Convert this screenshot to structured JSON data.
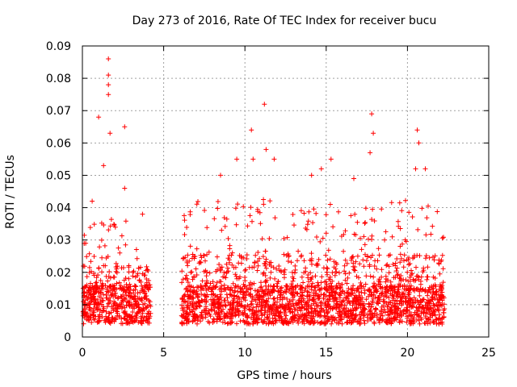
{
  "chart_data": {
    "type": "scatter",
    "title": "Day 273 of 2016, Rate Of TEC Index for receiver bucu",
    "xlabel": "GPS time / hours",
    "ylabel": "ROTI / TECUs",
    "xlim": [
      0,
      25
    ],
    "ylim": [
      0,
      0.09
    ],
    "xticks": [
      0,
      5,
      10,
      15,
      20,
      25
    ],
    "xtick_labels": [
      "0",
      "5",
      "10",
      "15",
      "20",
      "25"
    ],
    "yticks": [
      0,
      0.01,
      0.02,
      0.03,
      0.04,
      0.05,
      0.06,
      0.07,
      0.08,
      0.09
    ],
    "ytick_labels": [
      "0",
      "0.01",
      "0.02",
      "0.03",
      "0.04",
      "0.05",
      "0.06",
      "0.07",
      "0.08",
      "0.09"
    ],
    "grid": true,
    "marker": "+",
    "marker_color": "#ff0000",
    "data_gap_hours": [
      4.2,
      6.1
    ],
    "series": [
      {
        "name": "ROTI",
        "segments": [
          {
            "x_range": [
              0.0,
              4.2
            ],
            "typical_range": [
              0.004,
              0.03
            ]
          },
          {
            "x_range": [
              6.1,
              22.3
            ],
            "typical_range": [
              0.004,
              0.035
            ]
          }
        ],
        "peaks": [
          {
            "x": 0.6,
            "y": 0.042
          },
          {
            "x": 1.0,
            "y": 0.068
          },
          {
            "x": 1.3,
            "y": 0.053
          },
          {
            "x": 1.6,
            "y": 0.086
          },
          {
            "x": 1.6,
            "y": 0.081
          },
          {
            "x": 1.6,
            "y": 0.078
          },
          {
            "x": 1.6,
            "y": 0.075
          },
          {
            "x": 1.7,
            "y": 0.063
          },
          {
            "x": 2.6,
            "y": 0.065
          },
          {
            "x": 2.6,
            "y": 0.046
          },
          {
            "x": 3.7,
            "y": 0.038
          },
          {
            "x": 8.5,
            "y": 0.05
          },
          {
            "x": 9.5,
            "y": 0.055
          },
          {
            "x": 10.4,
            "y": 0.064
          },
          {
            "x": 10.5,
            "y": 0.055
          },
          {
            "x": 11.2,
            "y": 0.072
          },
          {
            "x": 11.3,
            "y": 0.058
          },
          {
            "x": 11.8,
            "y": 0.055
          },
          {
            "x": 14.1,
            "y": 0.05
          },
          {
            "x": 14.7,
            "y": 0.052
          },
          {
            "x": 15.3,
            "y": 0.055
          },
          {
            "x": 16.7,
            "y": 0.049
          },
          {
            "x": 17.8,
            "y": 0.069
          },
          {
            "x": 17.9,
            "y": 0.063
          },
          {
            "x": 17.7,
            "y": 0.057
          },
          {
            "x": 20.6,
            "y": 0.064
          },
          {
            "x": 20.7,
            "y": 0.06
          },
          {
            "x": 20.5,
            "y": 0.052
          },
          {
            "x": 21.1,
            "y": 0.052
          }
        ]
      }
    ]
  }
}
